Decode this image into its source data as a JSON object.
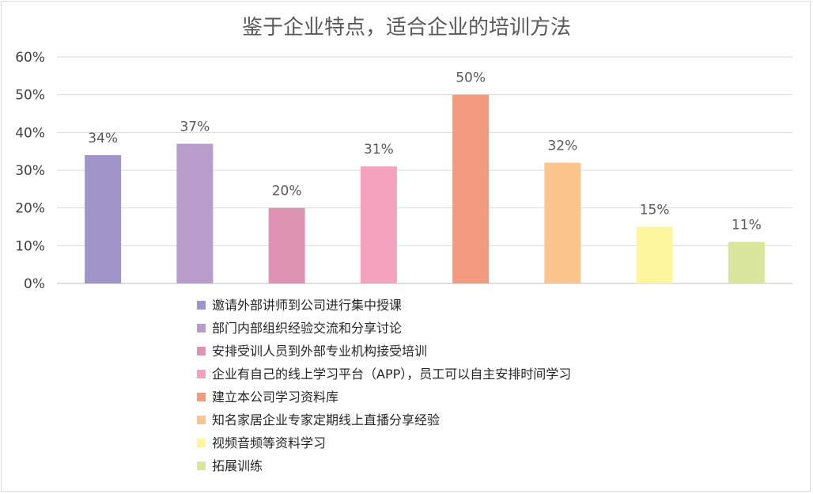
{
  "chart_data": {
    "type": "bar",
    "title": "鉴于企业特点，适合企业的培训方法",
    "xlabel": "",
    "ylabel": "",
    "ylim": [
      0,
      60
    ],
    "yticks": [
      "0%",
      "10%",
      "20%",
      "30%",
      "40%",
      "50%",
      "60%"
    ],
    "grid": true,
    "legend_position": "bottom",
    "categories": [
      "邀请外部讲师到公司进行集中授课",
      "部门内部组织经验交流和分享讨论",
      "安排受训人员到外部专业机构接受培训",
      "企业有自己的线上学习平台（APP），员工可以自主安排时间学习",
      "建立本公司学习资料库",
      "知名家居企业专家定期线上直播分享经验",
      "视频音频等资料学习",
      "拓展训练"
    ],
    "values": [
      34,
      37,
      20,
      31,
      50,
      32,
      15,
      11
    ],
    "data_labels": [
      "34%",
      "37%",
      "20%",
      "31%",
      "50%",
      "32%",
      "15%",
      "11%"
    ],
    "colors": [
      "#a095c8",
      "#b89ccb",
      "#de93b2",
      "#f5a2bf",
      "#f29a7d",
      "#fcc58d",
      "#fdf69d",
      "#d9e69b"
    ]
  }
}
